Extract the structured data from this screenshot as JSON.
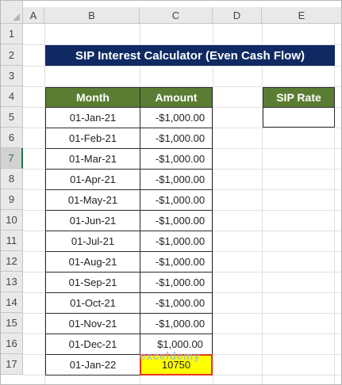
{
  "columns": [
    "A",
    "B",
    "C",
    "D",
    "E"
  ],
  "rows": [
    "1",
    "2",
    "3",
    "4",
    "5",
    "6",
    "7",
    "8",
    "9",
    "10",
    "11",
    "12",
    "13",
    "14",
    "15",
    "16",
    "17"
  ],
  "title": "SIP Interest Calculator (Even Cash Flow)",
  "headers": {
    "month": "Month",
    "amount": "Amount",
    "sip_rate": "SIP Rate"
  },
  "sip_rate_value": "",
  "table": [
    {
      "month": "01-Jan-21",
      "amount": "-$1,000.00"
    },
    {
      "month": "01-Feb-21",
      "amount": "-$1,000.00"
    },
    {
      "month": "01-Mar-21",
      "amount": "-$1,000.00"
    },
    {
      "month": "01-Apr-21",
      "amount": "-$1,000.00"
    },
    {
      "month": "01-May-21",
      "amount": "-$1,000.00"
    },
    {
      "month": "01-Jun-21",
      "amount": "-$1,000.00"
    },
    {
      "month": "01-Jul-21",
      "amount": "-$1,000.00"
    },
    {
      "month": "01-Aug-21",
      "amount": "-$1,000.00"
    },
    {
      "month": "01-Sep-21",
      "amount": "-$1,000.00"
    },
    {
      "month": "01-Oct-21",
      "amount": "-$1,000.00"
    },
    {
      "month": "01-Nov-21",
      "amount": "-$1,000.00"
    },
    {
      "month": "01-Dec-21",
      "amount": "$1,000.00"
    },
    {
      "month": "01-Jan-22",
      "amount": "10750"
    }
  ],
  "watermark": "exceldemy"
}
